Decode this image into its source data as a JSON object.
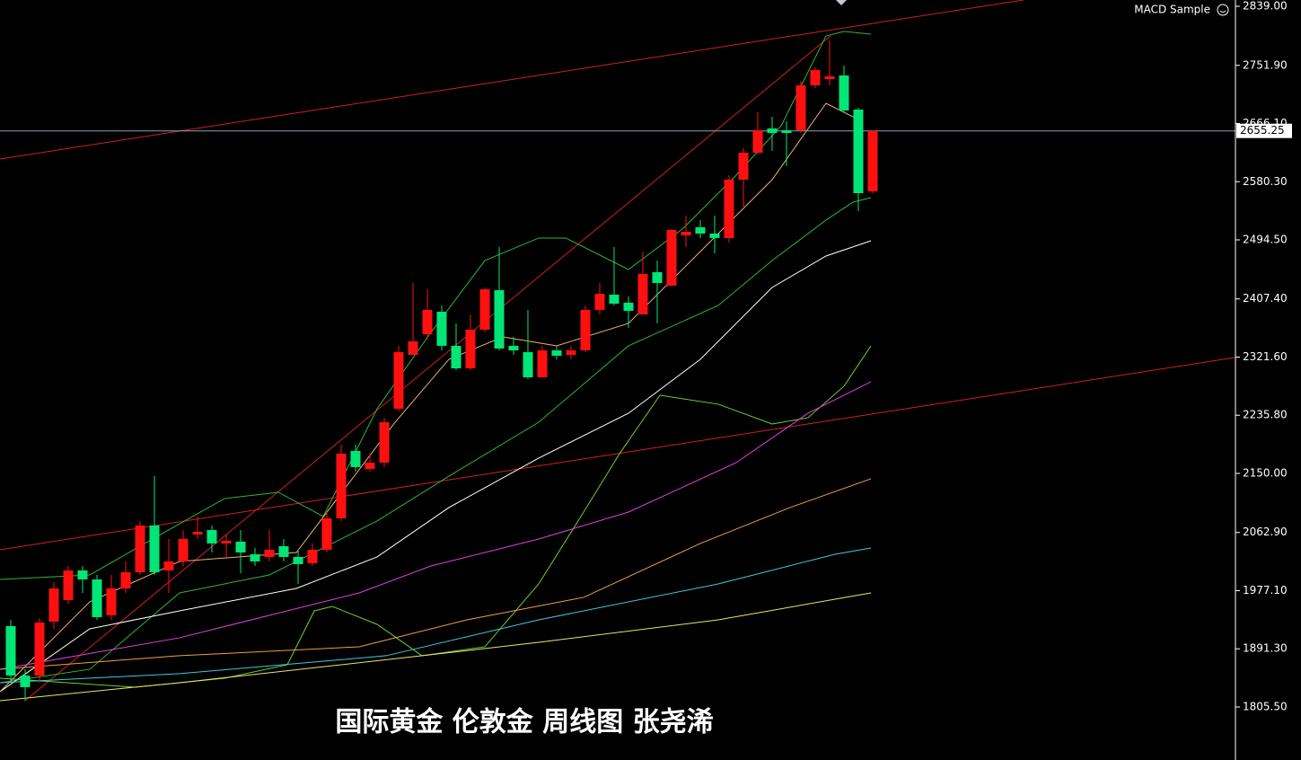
{
  "chart_data": {
    "type": "candlestick",
    "indicator": "MACD Sample",
    "caption": "国际黄金 伦敦金 周线图 张尧浠",
    "up_color": "#ff1010",
    "down_color": "#00e676",
    "xlim": [
      -0.75,
      85.19
    ],
    "ylim": [
      1727.3,
      2848.3
    ],
    "yticks": [
      {
        "value": 1805.5,
        "label": "1805.50"
      },
      {
        "value": 1891.3,
        "label": "1891.30"
      },
      {
        "value": 1977.1,
        "label": "1977.10"
      },
      {
        "value": 2062.9,
        "label": "2062.90"
      },
      {
        "value": 2150,
        "label": "2150.00"
      },
      {
        "value": 2235.8,
        "label": "2235.80"
      },
      {
        "value": 2321.6,
        "label": "2321.60"
      },
      {
        "value": 2407.4,
        "label": "2407.40"
      },
      {
        "value": 2494.5,
        "label": "2494.50"
      },
      {
        "value": 2580.3,
        "label": "2580.30"
      },
      {
        "value": 2666.1,
        "label": "2666.10"
      },
      {
        "value": 2751.9,
        "label": "2751.90"
      },
      {
        "value": 2839,
        "label": "2839.00"
      }
    ],
    "last_price": 2655.25,
    "last_price_color": "#8aa0b8",
    "open": [
      1924.8,
      1851.9,
      1851.9,
      1931.4,
      1963.2,
      2006.9,
      1993.7,
      1940.7,
      1980.4,
      2004.3,
      2073.2,
      2006.9,
      2020.2,
      2059.9,
      2066.5,
      2046.7,
      2049.3,
      2030.8,
      2026.8,
      2042.7,
      2026.8,
      2017.5,
      2037.4,
      2083.8,
      2183.1,
      2156.6,
      2165.9,
      2245.4,
      2324.9,
      2355.4,
      2388.5,
      2338.2,
      2305.0,
      2362.0,
      2420.3,
      2338.2,
      2328.9,
      2291.8,
      2331.5,
      2324.9,
      2331.5,
      2391.2,
      2413.7,
      2401.8,
      2384.5,
      2446.8,
      2426.9,
      2501.1,
      2513.1,
      2503.8,
      2497.2,
      2583.3,
      2623.0,
      2658.8,
      2656.2,
      2656.2,
      2722.4,
      2731.7,
      2737.0,
      2686.6,
      2566.1
    ],
    "high": [
      1934.0,
      1861.2,
      1936.7,
      1989.7,
      2013.5,
      2013.5,
      2000.3,
      2000.3,
      2020.2,
      2079.8,
      2146.0,
      2053.3,
      2066.5,
      2086.4,
      2073.2,
      2059.9,
      2066.5,
      2040.0,
      2066.5,
      2053.3,
      2037.4,
      2046.7,
      2093.0,
      2192.4,
      2192.4,
      2179.2,
      2232.2,
      2338.2,
      2430.9,
      2421.6,
      2397.8,
      2371.3,
      2384.5,
      2424.3,
      2483.9,
      2351.4,
      2391.2,
      2338.2,
      2338.2,
      2338.2,
      2397.8,
      2430.9,
      2483.9,
      2411.0,
      2477.3,
      2464.0,
      2510.4,
      2530.3,
      2523.7,
      2530.3,
      2589.9,
      2629.7,
      2682.7,
      2676.0,
      2669.4,
      2729.0,
      2748.9,
      2788.7,
      2751.6,
      2689.3,
      2655.25
    ],
    "low": [
      1841.3,
      1814.8,
      1841.3,
      1920.8,
      1957.9,
      1973.8,
      1934.0,
      1934.0,
      1973.8,
      2000.3,
      2000.3,
      1973.8,
      2013.5,
      2053.3,
      2033.4,
      2026.8,
      2002.9,
      2013.5,
      2020.2,
      2020.2,
      1987.0,
      2013.5,
      2033.4,
      2079.8,
      2152.7,
      2152.7,
      2159.3,
      2241.4,
      2324.9,
      2347.4,
      2331.5,
      2302.4,
      2302.4,
      2358.0,
      2331.5,
      2324.9,
      2289.1,
      2291.8,
      2318.3,
      2318.3,
      2328.9,
      2384.5,
      2397.8,
      2364.7,
      2384.5,
      2371.3,
      2426.9,
      2483.9,
      2497.2,
      2474.6,
      2490.5,
      2543.5,
      2620.4,
      2625.7,
      2603.2,
      2652.2,
      2718.4,
      2722.4,
      2682.7,
      2536.9,
      2563.4
    ],
    "close": [
      1851.9,
      1834.7,
      1930.1,
      1980.4,
      2006.9,
      1993.7,
      1938.0,
      1980.4,
      2004.3,
      2073.2,
      2004.3,
      2020.2,
      2053.3,
      2063.9,
      2046.7,
      2050.6,
      2033.4,
      2020.2,
      2037.4,
      2026.8,
      2016.2,
      2037.4,
      2083.8,
      2179.2,
      2159.3,
      2165.9,
      2225.5,
      2328.9,
      2344.8,
      2391.2,
      2338.2,
      2305.0,
      2362.0,
      2421.6,
      2334.2,
      2331.5,
      2291.8,
      2331.5,
      2323.6,
      2331.5,
      2391.2,
      2415.0,
      2400.4,
      2389.8,
      2444.2,
      2430.9,
      2509.1,
      2506.4,
      2503.8,
      2497.2,
      2583.3,
      2623.0,
      2656.2,
      2652.2,
      2652.2,
      2722.4,
      2744.9,
      2735.7,
      2685.3,
      2563.4,
      2655.25
    ],
    "overlays": [
      {
        "color": "#2fb82f",
        "x": [
          -0.75,
          5.5,
          9.88,
          14.88,
          18.63,
          21.75,
          25.5,
          29.25,
          33,
          36.75,
          38.63,
          43,
          46.75,
          50.5,
          53.63,
          56.75,
          58,
          59.88
        ],
        "values": [
          1993.7,
          2000.3,
          2053.3,
          2112.9,
          2122.2,
          2086.4,
          2245.4,
          2358.0,
          2464.0,
          2497.2,
          2497.2,
          2450.8,
          2510.4,
          2589.9,
          2662.8,
          2795.3,
          2801.9,
          2797.9
        ]
      },
      {
        "color": "#2fb82f",
        "x": [
          -0.75,
          5.5,
          11.75,
          18,
          25.5,
          30.5,
          36.75,
          43,
          49.25,
          53,
          56.75,
          58.63,
          59.88
        ],
        "values": [
          1841.3,
          1861.2,
          1973.8,
          2000.3,
          2079.8,
          2146.0,
          2225.5,
          2338.2,
          2397.8,
          2464.0,
          2523.7,
          2550.2,
          2556.8
        ]
      },
      {
        "color": "#ffffff",
        "x": [
          -0.75,
          5.5,
          11.75,
          19.88,
          25.5,
          30.5,
          36.75,
          43,
          48,
          53,
          56.75,
          59.88
        ],
        "values": [
          1828.1,
          1920.8,
          1947.3,
          1980.4,
          2026.8,
          2099.7,
          2172.6,
          2238.8,
          2318.3,
          2424.3,
          2470.7,
          2493.2
        ]
      },
      {
        "color": "#f0b070",
        "x": [
          -0.75,
          5.5,
          11.75,
          19.88,
          26.75,
          30.5,
          34.25,
          38,
          43,
          48,
          53,
          56.75,
          59.25
        ],
        "values": [
          1828.1,
          1960.6,
          2020.2,
          2033.4,
          2225.5,
          2318.3,
          2351.4,
          2338.2,
          2371.3,
          2477.3,
          2583.3,
          2695.9,
          2669.4
        ]
      },
      {
        "color": "#6fd030",
        "x": [
          -0.75,
          8.63,
          14.88,
          19.25,
          21.13,
          22.38,
          25.5,
          28.63,
          33,
          36.75,
          39.88,
          42.38,
          45.19,
          49.25,
          53,
          55.5,
          58,
          59.88
        ],
        "values": [
          1847.9,
          1834.7,
          1847.9,
          1867.8,
          1947.3,
          1953.9,
          1927.4,
          1881.1,
          1894.3,
          1987.0,
          2093.0,
          2179.2,
          2265.3,
          2252.1,
          2222.9,
          2232.2,
          2278.6,
          2338.2
        ]
      },
      {
        "color": "#e040e0",
        "x": [
          -0.75,
          11.75,
          24.25,
          29.25,
          36.75,
          43,
          50.5,
          55.5,
          59.88
        ],
        "values": [
          1861.2,
          1907.6,
          1973.8,
          2013.5,
          2053.3,
          2093.0,
          2165.9,
          2238.8,
          2285.2
        ]
      },
      {
        "color": "#f0a040",
        "x": [
          -0.75,
          11.75,
          24.25,
          31.75,
          39.88,
          48,
          54.25,
          59.88
        ],
        "values": [
          1861.2,
          1881.1,
          1894.3,
          1934.0,
          1967.2,
          2046.7,
          2099.7,
          2142.1
        ]
      },
      {
        "color": "#40c8e0",
        "x": [
          -0.75,
          11.75,
          26.13,
          36.75,
          49.25,
          57.38,
          59.88
        ],
        "values": [
          1841.3,
          1854.6,
          1881.1,
          1934.0,
          1987.0,
          2030.8,
          2040.0
        ]
      },
      {
        "color": "#e8e860",
        "x": [
          -0.75,
          11.75,
          28.63,
          36.75,
          49.25,
          57.38,
          59.88
        ],
        "values": [
          1814.8,
          1841.3,
          1881.1,
          1900.9,
          1934.0,
          1964.5,
          1973.8
        ]
      }
    ],
    "trendlines": [
      {
        "color": "#d02020",
        "x": [
          -0.75,
          70.5
        ],
        "values": [
          2613.8,
          2848.3
        ]
      },
      {
        "color": "#d02020",
        "x": [
          -0.75,
          85.19
        ],
        "values": [
          2037.4,
          2320.9
        ]
      },
      {
        "color": "#d02020",
        "x": [
          1,
          57.06
        ],
        "values": [
          1814.8,
          2795.3
        ]
      }
    ]
  }
}
